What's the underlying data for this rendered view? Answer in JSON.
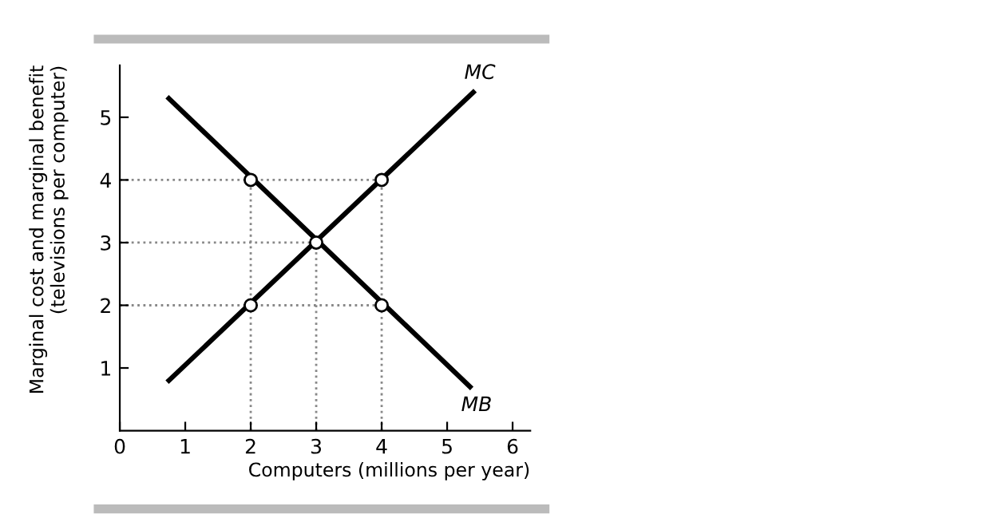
{
  "chart_data": {
    "type": "line",
    "xlabel": "Computers (millions per year)",
    "ylabel": "Marginal cost and marginal benefit\n(televisions per computer)",
    "xlim": [
      0,
      6.27
    ],
    "ylim": [
      0,
      5.83
    ],
    "xticks": [
      0,
      1,
      2,
      3,
      4,
      5,
      6
    ],
    "yticks": [
      1,
      2,
      3,
      4,
      5
    ],
    "grid": false,
    "legend": false,
    "marker": "none",
    "line_style": "solid",
    "series": [
      {
        "name": "MC",
        "color": "#000000",
        "x": [
          0.75,
          5.4
        ],
        "values": [
          0.8,
          5.4
        ]
      },
      {
        "name": "MB",
        "color": "#000000",
        "x": [
          0.75,
          5.35
        ],
        "values": [
          5.3,
          0.7
        ]
      },
      {
        "color": "#888888",
        "line_style": "dotted",
        "x": [
          0,
          4
        ],
        "values": [
          4,
          4
        ]
      },
      {
        "color": "#888888",
        "line_style": "dotted",
        "x": [
          0,
          3
        ],
        "values": [
          3,
          3
        ]
      },
      {
        "color": "#888888",
        "line_style": "dotted",
        "x": [
          0,
          4
        ],
        "values": [
          2,
          2
        ]
      },
      {
        "color": "#888888",
        "line_style": "dotted",
        "x": [
          2,
          2
        ],
        "values": [
          0,
          4
        ]
      },
      {
        "color": "#888888",
        "line_style": "dotted",
        "x": [
          3,
          3
        ],
        "values": [
          0,
          3
        ]
      },
      {
        "color": "#888888",
        "line_style": "dotted",
        "x": [
          4,
          4
        ],
        "values": [
          0,
          4
        ]
      },
      {
        "type": "scatter",
        "marker": "circle",
        "color": "#000000",
        "x": [
          2,
          3,
          4,
          2,
          4
        ],
        "values": [
          2,
          3,
          4,
          4,
          2
        ]
      }
    ]
  }
}
